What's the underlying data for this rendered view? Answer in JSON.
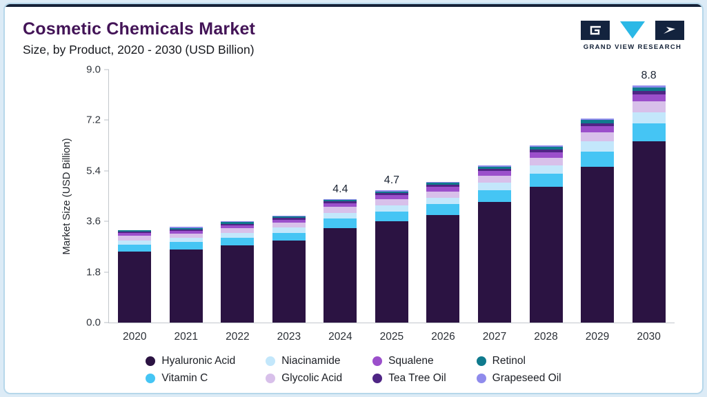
{
  "header": {
    "title": "Cosmetic Chemicals Market",
    "subtitle": "Size, by Product, 2020 - 2030 (USD Billion)",
    "brand_name": "GRAND VIEW RESEARCH"
  },
  "brand_colors": {
    "navy": "#13233e",
    "cyan": "#2bb8e6"
  },
  "chart_data": {
    "type": "bar",
    "stacked": true,
    "title": "Cosmetic Chemicals Market Size, by Product, 2020 - 2030 (USD Billion)",
    "xlabel": "",
    "ylabel": "Market Size (USD Billion)",
    "ylim": [
      0,
      9.0
    ],
    "ytick_labels": [
      "0.0",
      "1.8",
      "3.6",
      "5.4",
      "7.2",
      "9.0"
    ],
    "grid": false,
    "legend_position": "bottom",
    "categories": [
      "2020",
      "2021",
      "2022",
      "2023",
      "2024",
      "2025",
      "2026",
      "2027",
      "2028",
      "2029",
      "2030"
    ],
    "series": [
      {
        "name": "Hyaluronic Acid",
        "color": "#2b1342",
        "values": [
          2.52,
          2.6,
          2.75,
          2.91,
          3.37,
          3.6,
          3.83,
          4.28,
          4.82,
          5.55,
          6.73
        ]
      },
      {
        "name": "Vitamin C",
        "color": "#45c5f4",
        "values": [
          0.25,
          0.26,
          0.27,
          0.29,
          0.33,
          0.35,
          0.38,
          0.42,
          0.47,
          0.54,
          0.66
        ]
      },
      {
        "name": "Niacinamide",
        "color": "#c3e7fb",
        "values": [
          0.16,
          0.16,
          0.17,
          0.18,
          0.21,
          0.23,
          0.24,
          0.27,
          0.3,
          0.35,
          0.42
        ]
      },
      {
        "name": "Glycolic Acid",
        "color": "#d8c0ea",
        "values": [
          0.15,
          0.15,
          0.16,
          0.17,
          0.2,
          0.21,
          0.22,
          0.25,
          0.28,
          0.33,
          0.4
        ]
      },
      {
        "name": "Squalene",
        "color": "#9b4fcb",
        "values": [
          0.1,
          0.1,
          0.11,
          0.11,
          0.13,
          0.14,
          0.15,
          0.17,
          0.19,
          0.22,
          0.26
        ]
      },
      {
        "name": "Tea Tree Oil",
        "color": "#4f2585",
        "values": [
          0.05,
          0.05,
          0.06,
          0.06,
          0.07,
          0.07,
          0.08,
          0.08,
          0.1,
          0.11,
          0.13
        ]
      },
      {
        "name": "Retinol",
        "color": "#0f7a8d",
        "values": [
          0.05,
          0.05,
          0.05,
          0.06,
          0.06,
          0.07,
          0.07,
          0.08,
          0.09,
          0.1,
          0.13
        ]
      },
      {
        "name": "Grapeseed Oil",
        "color": "#8f8bec",
        "values": [
          0.02,
          0.03,
          0.03,
          0.02,
          0.03,
          0.03,
          0.03,
          0.05,
          0.05,
          0.05,
          0.07
        ]
      }
    ],
    "totals": [
      3.3,
      3.4,
      3.6,
      3.8,
      4.4,
      4.7,
      5.0,
      5.6,
      6.3,
      7.25,
      8.8
    ],
    "bar_labels": {
      "2024": "4.4",
      "2025": "4.7",
      "2030": "8.8"
    },
    "legend_order": [
      "Hyaluronic Acid",
      "Niacinamide",
      "Squalene",
      "Retinol",
      "Vitamin C",
      "Glycolic Acid",
      "Tea Tree Oil",
      "Grapeseed Oil"
    ]
  }
}
